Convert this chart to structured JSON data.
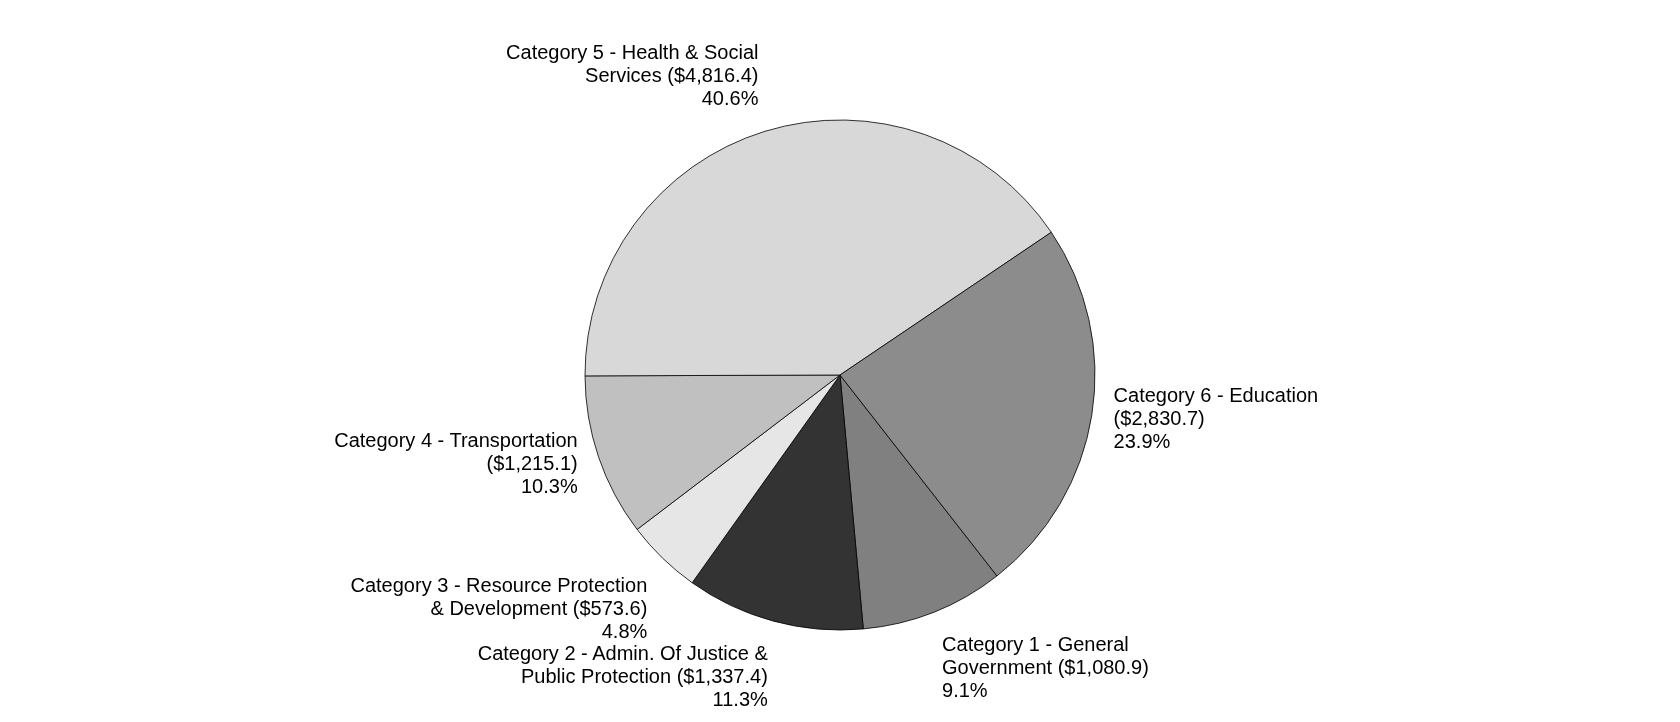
{
  "chart_data": {
    "type": "pie",
    "categories": [
      "Category 1 - General Government ($1,080.9)",
      "Category 2 - Admin. Of Justice & Public Protection ($1,337.4)",
      "Category 3 - Resource Protection & Development ($573.6)",
      "Category 4 - Transportation ($1,215.1)",
      "Category 5 - Health & Social Services ($4,816.4)",
      "Category 6 - Education ($2,830.7)"
    ],
    "values": [
      9.1,
      11.3,
      4.8,
      10.3,
      40.6,
      23.9
    ],
    "value_labels": [
      "9.1%",
      "11.3%",
      "4.8%",
      "10.3%",
      "40.6%",
      "23.9%"
    ],
    "colors": [
      "#808080",
      "#333333",
      "#e6e6e6",
      "#c0c0c0",
      "#d8d8d8",
      "#8c8c8c"
    ]
  }
}
